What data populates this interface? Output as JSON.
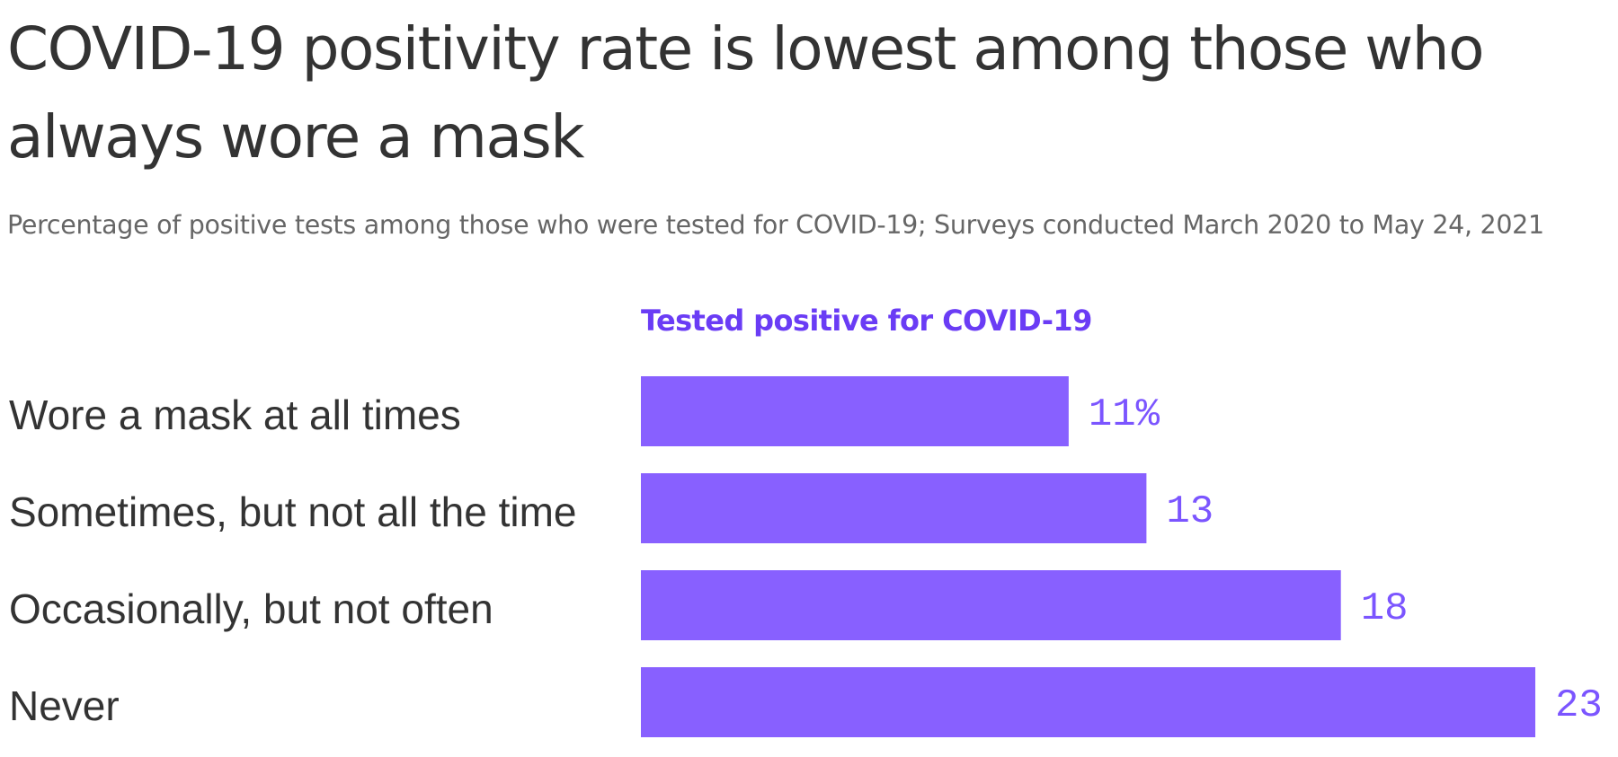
{
  "title": "COVID-19 positivity rate is lowest among those who always wore a mask",
  "subtitle": "Percentage of positive tests among those who were tested for COVID-19; Surveys conducted March 2020 to May 24, 2021",
  "colors": {
    "bar": "#8860FF",
    "series_label": "#6A3CF5",
    "value_label": "#7B55FF",
    "category_text": "#333333",
    "title_text": "#333333",
    "subtitle_text": "#666666"
  },
  "chart_data": {
    "type": "bar",
    "orientation": "horizontal",
    "categories": [
      "Wore a mask at all times",
      "Sometimes, but not all the time",
      "Occasionally, but not often",
      "Never"
    ],
    "series": [
      {
        "name": "Tested positive for COVID-19",
        "values": [
          11,
          13,
          18,
          23
        ]
      }
    ],
    "value_labels": [
      "11%",
      "13",
      "18",
      "23"
    ],
    "xlim": [
      0,
      23
    ],
    "grid": false,
    "legend": "top"
  }
}
